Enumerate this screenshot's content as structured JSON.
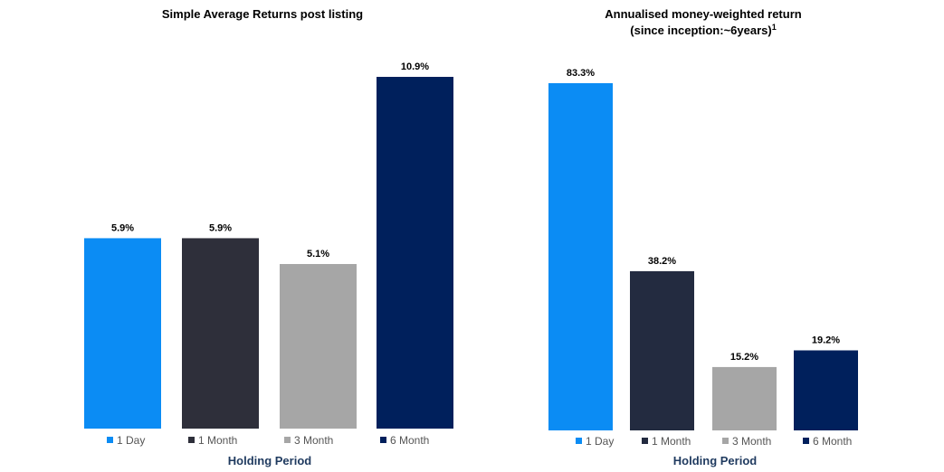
{
  "chart_data": [
    {
      "type": "bar",
      "title": "Simple Average Returns post listing",
      "subtitle": "",
      "xlabel": "Holding Period",
      "ylabel": "",
      "ylim": [
        0,
        11
      ],
      "unit": "%",
      "grid": false,
      "legend_position": "bottom",
      "categories": [
        "1 Day",
        "1 Month",
        "3 Month",
        "6 Month"
      ],
      "values": [
        5.9,
        5.9,
        5.1,
        10.9
      ],
      "data_labels": [
        "5.9%",
        "5.9%",
        "5.1%",
        "10.9%"
      ],
      "colors": [
        "#0b8cf4",
        "#2e2f3a",
        "#a6a6a6",
        "#00205c"
      ]
    },
    {
      "type": "bar",
      "title": "Annualised money-weighted return",
      "subtitle": "(since inception:~6years)",
      "footnote_marker": "1",
      "xlabel": "Holding Period",
      "ylabel": "",
      "ylim": [
        0,
        85
      ],
      "unit": "%",
      "grid": false,
      "legend_position": "bottom",
      "categories": [
        "1 Day",
        "1 Month",
        "3 Month",
        "6 Month"
      ],
      "values": [
        83.3,
        38.2,
        15.2,
        19.2
      ],
      "data_labels": [
        "83.3%",
        "38.2%",
        "15.2%",
        "19.2%"
      ],
      "colors": [
        "#0b8cf4",
        "#232b40",
        "#a6a6a6",
        "#00205c"
      ]
    }
  ]
}
